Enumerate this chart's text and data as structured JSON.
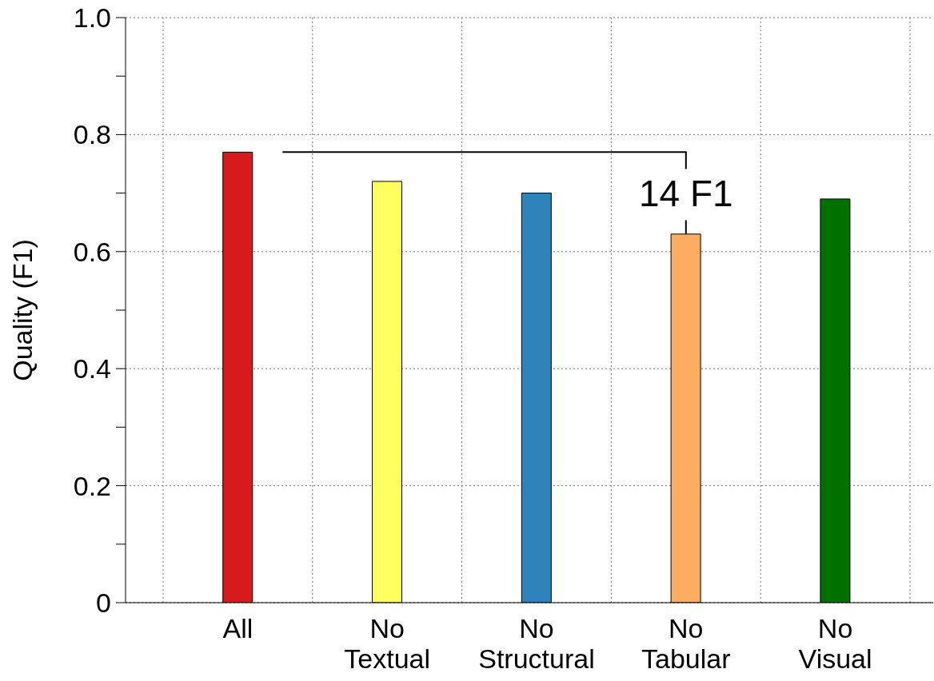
{
  "chart_data": {
    "type": "bar",
    "ylabel": "Quality (F1)",
    "categories": [
      "All",
      "No Textual",
      "No Structural",
      "No Tabular",
      "No Visual"
    ],
    "values": [
      0.77,
      0.72,
      0.7,
      0.63,
      0.69
    ],
    "colors": [
      "#d71a1c",
      "#ffff60",
      "#2e83ba",
      "#fdad62",
      "#007000"
    ],
    "ylim": [
      0,
      1
    ],
    "yticks": [
      0,
      {
        "value": 0.1,
        "label": null
      },
      {
        "value": 0.2,
        "label": "0.2"
      },
      {
        "value": 0.3,
        "label": null
      },
      {
        "value": 0.4,
        "label": "0.4"
      },
      {
        "value": 0.5,
        "label": null
      },
      {
        "value": 0.6,
        "label": "0.6"
      },
      {
        "value": 0.7,
        "label": null
      },
      {
        "value": 0.8,
        "label": "0.8"
      },
      {
        "value": 0.9,
        "label": null
      },
      {
        "value": 1,
        "label": "1.0"
      }
    ],
    "grid": true,
    "annotations": [
      "14 F1"
    ]
  }
}
